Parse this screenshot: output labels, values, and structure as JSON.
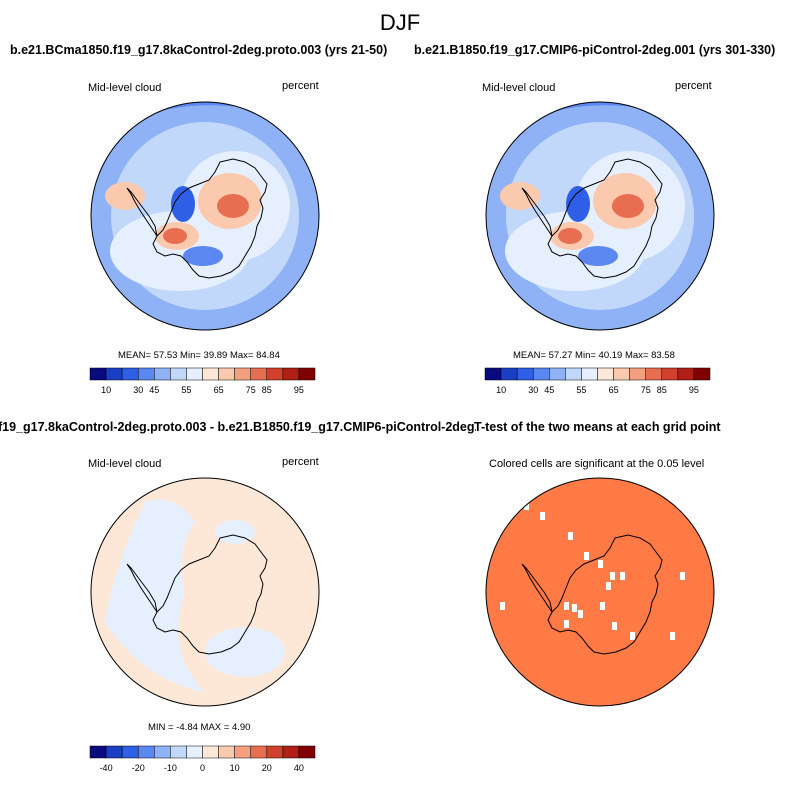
{
  "title": "DJF",
  "panels": [
    {
      "title": "b.e21.BCma1850.f19_g17.8kaControl-2deg.proto.003 (yrs 21-50)",
      "left_label": "Mid-level cloud",
      "right_label": "percent",
      "stats": "MEAN=  57.53   Min=  39.89   Max=  84.84",
      "colorbar_labels": [
        "10",
        "30",
        "45",
        "55",
        "65",
        "75",
        "85",
        "95"
      ]
    },
    {
      "title": "b.e21.B1850.f19_g17.CMIP6-piControl-2deg.001 (yrs 301-330)",
      "left_label": "Mid-level cloud",
      "right_label": "percent",
      "stats": "MEAN=  57.27   Min=  40.19   Max=  83.58",
      "colorbar_labels": [
        "10",
        "30",
        "45",
        "55",
        "65",
        "75",
        "85",
        "95"
      ]
    },
    {
      "title": "f19_g17.8kaControl-2deg.proto.003 - b.e21.B1850.f19_g17.CMIP6-piControl-2deg.001",
      "left_label": "Mid-level cloud",
      "right_label": "percent",
      "stats": "MIN =  -4.84  MAX =   4.90",
      "colorbar_labels": [
        "-40",
        "-20",
        "-10",
        "0",
        "10",
        "20",
        "40"
      ]
    },
    {
      "title": "T-test of the two means at each grid point",
      "subtitle": "Colored cells are significant at the 0.05 level"
    }
  ],
  "colors": {
    "abs_scale": [
      "#0a0a80",
      "#1a3fc4",
      "#2e5fe6",
      "#5a88f0",
      "#8eb2f5",
      "#c2d8fb",
      "#e6effe",
      "#fde8d8",
      "#fbc9ae",
      "#f4a080",
      "#e86e52",
      "#d2402e",
      "#b01e16",
      "#800000"
    ],
    "diff_scale": [
      "#0a0a80",
      "#1a3fc4",
      "#2e5fe6",
      "#5a88f0",
      "#8eb2f5",
      "#c2d8fb",
      "#e6effe",
      "#fde8d8",
      "#fbc9ae",
      "#f4a080",
      "#e86e52",
      "#d2402e",
      "#b01e16",
      "#800000"
    ],
    "ttest_fill": "#ff7a45"
  }
}
